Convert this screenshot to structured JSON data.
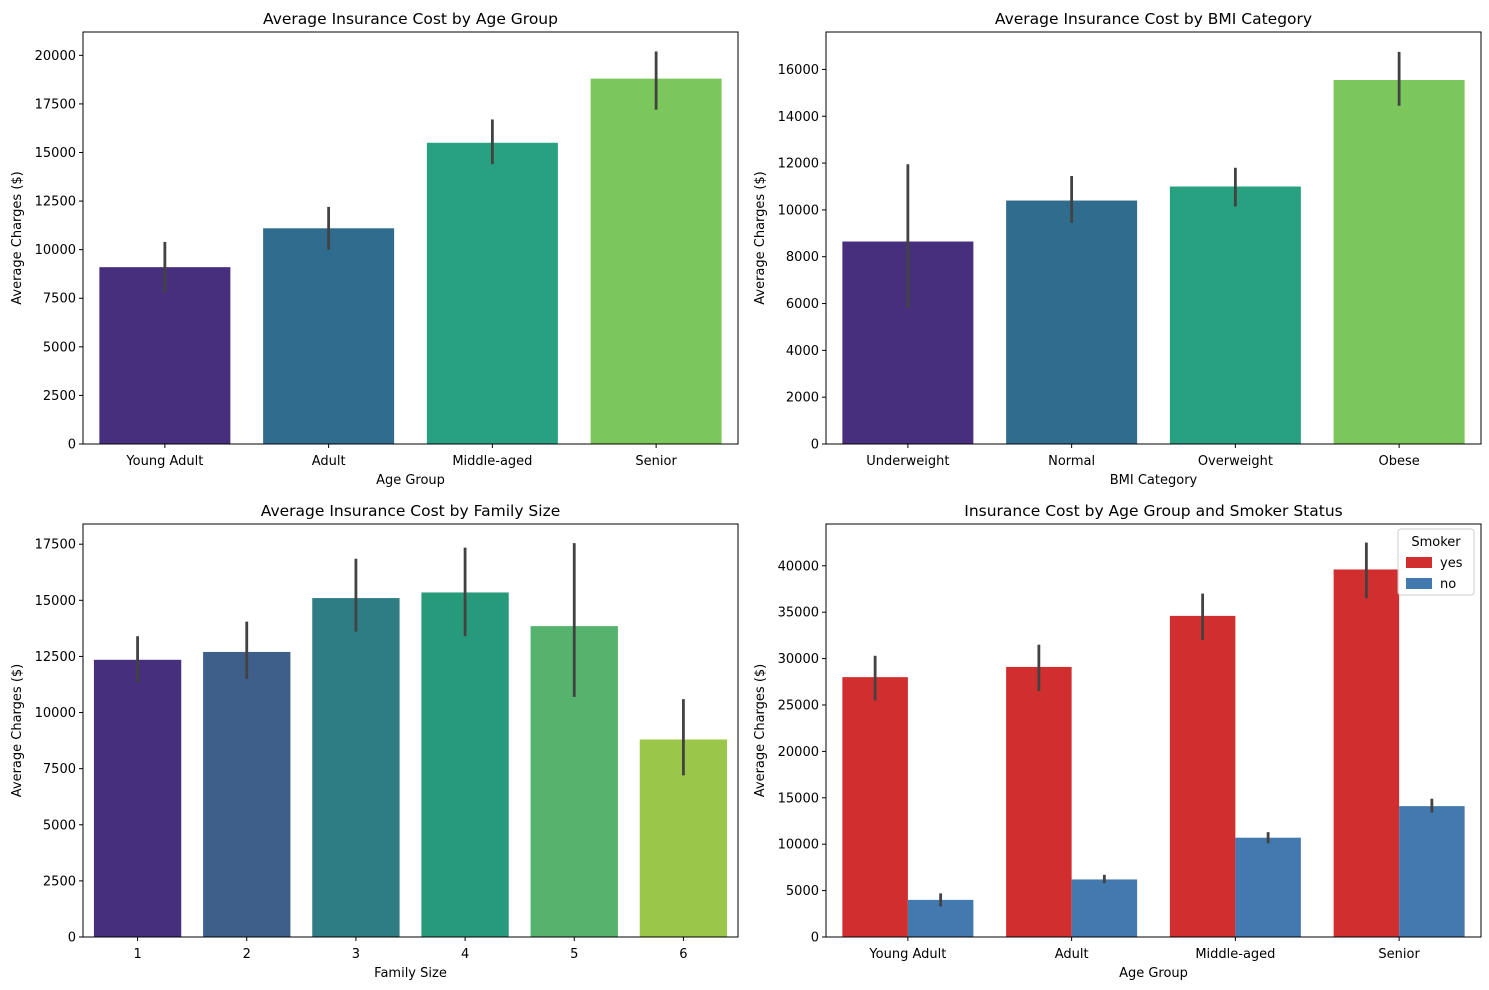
{
  "chart_data": [
    {
      "type": "bar",
      "title": "Average Insurance Cost by Age Group",
      "xlabel": "Age Group",
      "ylabel": "Average Charges ($)",
      "categories": [
        "Young Adult",
        "Adult",
        "Middle-aged",
        "Senior"
      ],
      "values": [
        9100,
        11100,
        15500,
        18800
      ],
      "error_low": [
        7800,
        10000,
        14400,
        17200
      ],
      "error_high": [
        10400,
        12200,
        16700,
        20200
      ],
      "colors": [
        "#472f7d",
        "#2f6c8e",
        "#27a17f",
        "#7cc75b"
      ],
      "ylim": [
        0,
        21200
      ],
      "yticks": [
        0,
        2500,
        5000,
        7500,
        10000,
        12500,
        15000,
        17500,
        20000
      ],
      "grid": false
    },
    {
      "type": "bar",
      "title": "Average Insurance Cost by BMI Category",
      "xlabel": "BMI Category",
      "ylabel": "Average Charges ($)",
      "categories": [
        "Underweight",
        "Normal",
        "Overweight",
        "Obese"
      ],
      "values": [
        8650,
        10400,
        11000,
        15550
      ],
      "error_low": [
        5800,
        9450,
        10150,
        14450
      ],
      "error_high": [
        11950,
        11450,
        11800,
        16750
      ],
      "colors": [
        "#472f7d",
        "#2f6c8e",
        "#27a17f",
        "#7cc75b"
      ],
      "ylim": [
        0,
        17600
      ],
      "yticks": [
        0,
        2000,
        4000,
        6000,
        8000,
        10000,
        12000,
        14000,
        16000
      ],
      "grid": false
    },
    {
      "type": "bar",
      "title": "Average Insurance Cost by Family Size",
      "xlabel": "Family Size",
      "ylabel": "Average Charges ($)",
      "categories": [
        "1",
        "2",
        "3",
        "4",
        "5",
        "6"
      ],
      "values": [
        12350,
        12700,
        15100,
        15350,
        13850,
        8800
      ],
      "error_low": [
        11350,
        11500,
        13600,
        13400,
        10700,
        7200
      ],
      "error_high": [
        13400,
        14050,
        16850,
        17350,
        17550,
        10600
      ],
      "colors": [
        "#462f7c",
        "#3e5f8a",
        "#2e7d85",
        "#289a7c",
        "#55b36e",
        "#9ac64a"
      ],
      "ylim": [
        0,
        18400
      ],
      "yticks": [
        0,
        2500,
        5000,
        7500,
        10000,
        12500,
        15000,
        17500
      ],
      "grid": false
    },
    {
      "type": "bar",
      "title": "Insurance Cost by Age Group and Smoker Status",
      "xlabel": "Age Group",
      "ylabel": "Average Charges ($)",
      "categories": [
        "Young Adult",
        "Adult",
        "Middle-aged",
        "Senior"
      ],
      "series": [
        {
          "name": "yes",
          "color": "#d12e2f",
          "values": [
            28000,
            29100,
            34600,
            39600
          ],
          "error_low": [
            25500,
            26500,
            32000,
            36500
          ],
          "error_high": [
            30300,
            31500,
            37000,
            42500
          ]
        },
        {
          "name": "no",
          "color": "#4279ae",
          "values": [
            4000,
            6200,
            10700,
            14100
          ],
          "error_low": [
            3300,
            5800,
            10100,
            13400
          ],
          "error_high": [
            4700,
            6700,
            11300,
            14900
          ]
        }
      ],
      "legend": {
        "title": "Smoker",
        "position": "top-right"
      },
      "ylim": [
        0,
        44500
      ],
      "yticks": [
        0,
        5000,
        10000,
        15000,
        20000,
        25000,
        30000,
        35000,
        40000
      ],
      "grid": false
    }
  ]
}
